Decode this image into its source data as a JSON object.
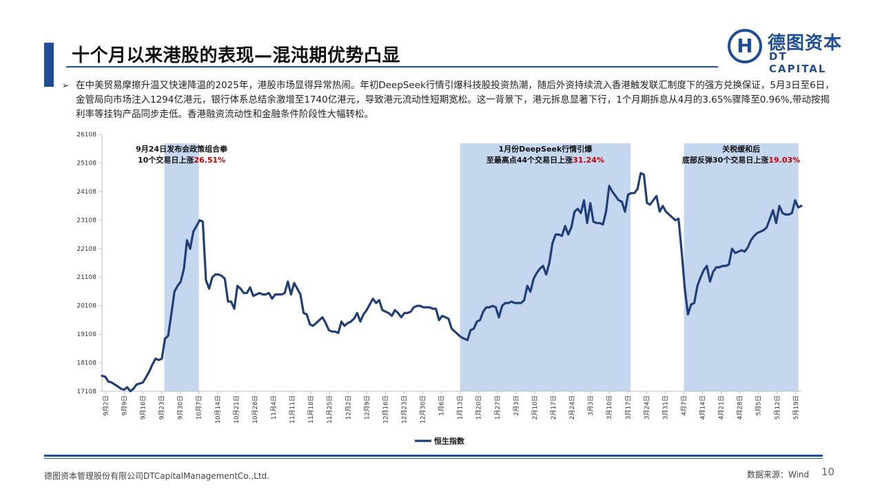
{
  "header": {
    "title": "十个月以来港股的表现—混沌期优势凸显",
    "logo_cn": "德图资本",
    "logo_en": "DT CAPITAL",
    "logo_glyph": "H"
  },
  "bullet": {
    "mark": "➢",
    "text": "在中美贸易摩擦升温又快速降温的2025年，港股市场显得异常热闹。年初DeepSeek行情引爆科技股投资热潮，随后外资持续流入香港触发联汇制度下的强方兑换保证，5月3日至6日，金管局向市场注入1294亿港元，银行体系总结余激增至1740亿港元，导致港元流动性短期宽松。这一背景下，港元拆息显著下行，1个月期拆息从4月的3.65%骤降至0.96%,带动按揭利率等挂钩产品同步走低。香港融资流动性和金融条件阶段性大幅转松。"
  },
  "colors": {
    "line": "#1f3e7a",
    "shade": "#c5d6ef",
    "highlight": "#c00000",
    "brand": "#1f4e96"
  },
  "chart_data": {
    "type": "line",
    "title": "",
    "legend": "恒生指数",
    "legend_position": "bottom",
    "ylim": [
      17108,
      26108
    ],
    "yticks": [
      17108,
      18108,
      19108,
      20108,
      21108,
      22108,
      23108,
      24108,
      25108,
      26108
    ],
    "xticks": [
      "9月2日",
      "9月9日",
      "9月16日",
      "9月23日",
      "9月30日",
      "10月7日",
      "10月14日",
      "10月21日",
      "10月28日",
      "11月4日",
      "11月11日",
      "11月18日",
      "11月25日",
      "12月2日",
      "12月9日",
      "12月16日",
      "12月23日",
      "12月30日",
      "1月6日",
      "1月13日",
      "1月20日",
      "1月27日",
      "2月3日",
      "2月10日",
      "2月17日",
      "2月24日",
      "3月3日",
      "3月10日",
      "3月17日",
      "3月24日",
      "3月31日",
      "4月7日",
      "4月14日",
      "4月21日",
      "4月28日",
      "5月5日",
      "5月12日",
      "5月19日"
    ],
    "series": [
      {
        "name": "恒生指数",
        "values": [
          17650,
          17620,
          17450,
          17420,
          17350,
          17280,
          17200,
          17160,
          17250,
          17110,
          17200,
          17350,
          17380,
          17420,
          17600,
          17800,
          18050,
          18250,
          18200,
          18250,
          18950,
          19050,
          19800,
          20600,
          20800,
          20950,
          21400,
          22400,
          22100,
          22700,
          22900,
          23100,
          23050,
          21000,
          20700,
          21100,
          21200,
          21200,
          21150,
          21050,
          20250,
          20250,
          20000,
          20800,
          20700,
          20550,
          20550,
          20750,
          20450,
          20500,
          20550,
          20500,
          20500,
          20550,
          20350,
          20500,
          20500,
          20500,
          20550,
          20950,
          20500,
          20900,
          20700,
          20500,
          19850,
          19800,
          19450,
          19400,
          19500,
          19600,
          19700,
          19500,
          19250,
          19200,
          19200,
          19150,
          19550,
          19400,
          19500,
          19550,
          19650,
          19850,
          19550,
          19800,
          19950,
          20150,
          20350,
          20200,
          20300,
          19950,
          19900,
          19850,
          19750,
          19950,
          19850,
          19700,
          19850,
          19850,
          19900,
          20050,
          20100,
          20100,
          20050,
          20050,
          20050,
          20000,
          20000,
          19600,
          19750,
          19700,
          19650,
          19300,
          19200,
          19100,
          19000,
          18950,
          18900,
          19250,
          19300,
          19550,
          19600,
          19900,
          20050,
          20050,
          20100,
          20050,
          19700,
          20100,
          20200,
          20200,
          20250,
          20200,
          20200,
          20200,
          20300,
          20800,
          20600,
          21050,
          21250,
          21400,
          21500,
          21200,
          21600,
          22300,
          22600,
          22600,
          22550,
          22900,
          22600,
          22850,
          23400,
          23500,
          23350,
          23800,
          23000,
          23700,
          23050,
          23000,
          23000,
          22950,
          23400,
          24300,
          24100,
          23950,
          23800,
          23750,
          23400,
          24000,
          24050,
          24050,
          24200,
          24750,
          24700,
          23700,
          23650,
          23800,
          23950,
          23400,
          23600,
          23400,
          23300,
          23200,
          23100,
          23150,
          22000,
          20700,
          19800,
          20150,
          20200,
          20800,
          21100,
          21350,
          21500,
          20950,
          21300,
          21450,
          21450,
          21500,
          21500,
          21550,
          22100,
          21950,
          22000,
          22050,
          22000,
          22150,
          22400,
          22550,
          22650,
          22700,
          22750,
          22850,
          23150,
          23450,
          23000,
          23600,
          23350,
          23300,
          23300,
          23350,
          23800,
          23550,
          23600
        ]
      }
    ],
    "shaded_regions": [
      {
        "start": "9月24日",
        "end": "10月7日",
        "label_line1": "9月24日发布会政策组合拳",
        "label_line2": "10个交易日上涨",
        "highlight": "26.51%"
      },
      {
        "start": "1月13日",
        "end": "3月18日",
        "label_line1": "1月份DeepSeek行情引爆",
        "label_line2": "至最高点44个交易日上涨",
        "highlight": "31.24%"
      },
      {
        "start": "4月7日",
        "end": "5月20日",
        "label_line1": "关税缓和后",
        "label_line2": "底部反弹30个交易日上涨",
        "highlight": "19.03%"
      }
    ]
  },
  "footer": {
    "company": "德图资本管理股份有限公司DTCapitalManagementCo.,Ltd.",
    "source": "数据来源：Wind",
    "page": "10"
  }
}
